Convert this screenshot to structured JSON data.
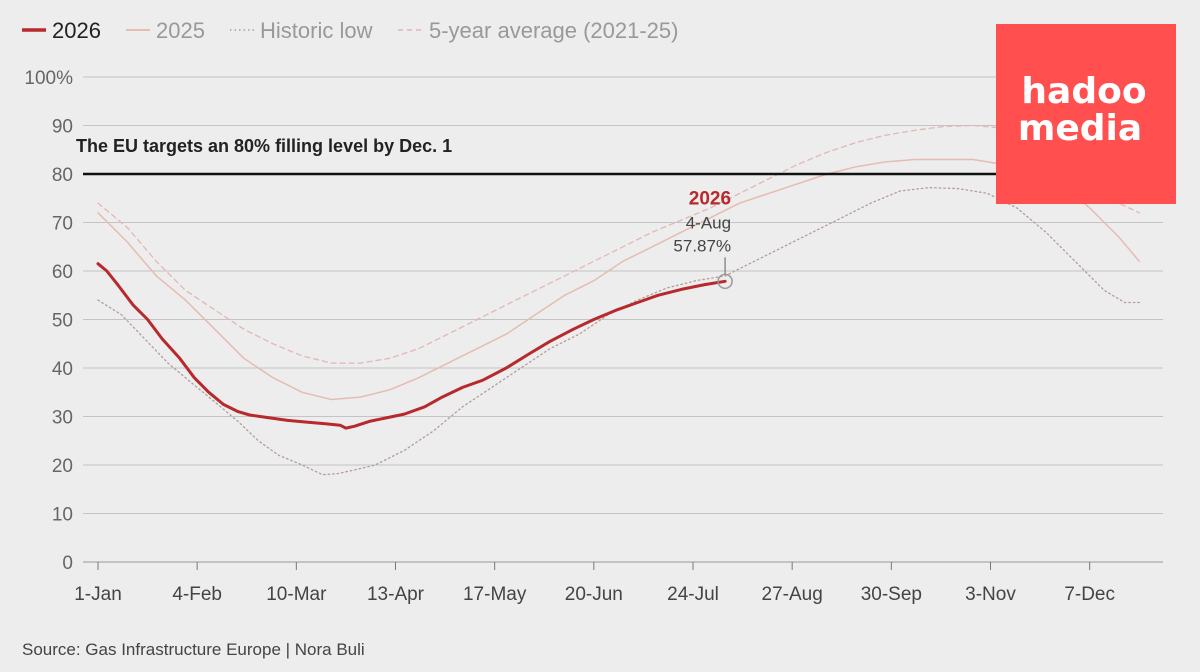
{
  "chart_data": {
    "type": "line",
    "legend_placement": "top-left",
    "x_ticks": [
      "1-Jan",
      "4-Feb",
      "10-Mar",
      "13-Apr",
      "17-May",
      "20-Jun",
      "24-Jul",
      "27-Aug",
      "30-Sep",
      "3-Nov",
      "7-Dec"
    ],
    "y_ticks": [
      "0",
      "10",
      "20",
      "30",
      "40",
      "50",
      "60",
      "70",
      "80",
      "90",
      "100%"
    ],
    "ylim": [
      0,
      100
    ],
    "x_domain_days": [
      0,
      360
    ],
    "grid": true,
    "target": {
      "value": 80,
      "label": "The EU targets an 80% filling level by Dec. 1"
    },
    "annotation": {
      "title": "2026",
      "date": "4-Aug",
      "value_label": "57.87%",
      "day": 215,
      "value": 57.87
    },
    "series": [
      {
        "name": "2026",
        "color": "#b7292c",
        "style": "solid-thick",
        "points": [
          [
            0,
            61.5
          ],
          [
            3,
            60
          ],
          [
            7,
            57
          ],
          [
            12,
            53
          ],
          [
            17,
            50
          ],
          [
            22,
            46
          ],
          [
            28,
            42
          ],
          [
            33,
            38
          ],
          [
            38,
            35
          ],
          [
            43,
            32.5
          ],
          [
            48,
            31
          ],
          [
            52,
            30.3
          ],
          [
            58,
            29.8
          ],
          [
            65,
            29.2
          ],
          [
            72,
            28.8
          ],
          [
            78,
            28.5
          ],
          [
            83,
            28.2
          ],
          [
            85,
            27.6
          ],
          [
            88,
            28
          ],
          [
            93,
            29
          ],
          [
            98,
            29.6
          ],
          [
            105,
            30.5
          ],
          [
            112,
            32
          ],
          [
            118,
            34
          ],
          [
            125,
            36
          ],
          [
            132,
            37.5
          ],
          [
            140,
            40
          ],
          [
            148,
            43
          ],
          [
            155,
            45.5
          ],
          [
            163,
            48
          ],
          [
            170,
            50
          ],
          [
            178,
            52
          ],
          [
            185,
            53.5
          ],
          [
            192,
            55
          ],
          [
            200,
            56.2
          ],
          [
            208,
            57.2
          ],
          [
            215,
            57.87
          ]
        ]
      },
      {
        "name": "2025",
        "color": "#e6bcb0",
        "style": "solid-thin",
        "points": [
          [
            0,
            72
          ],
          [
            10,
            66
          ],
          [
            20,
            59
          ],
          [
            30,
            54
          ],
          [
            40,
            48
          ],
          [
            50,
            42
          ],
          [
            60,
            38
          ],
          [
            70,
            35
          ],
          [
            80,
            33.5
          ],
          [
            90,
            34
          ],
          [
            100,
            35.5
          ],
          [
            110,
            38
          ],
          [
            120,
            41
          ],
          [
            130,
            44
          ],
          [
            140,
            47
          ],
          [
            150,
            51
          ],
          [
            160,
            55
          ],
          [
            170,
            58
          ],
          [
            180,
            62
          ],
          [
            190,
            65
          ],
          [
            200,
            68
          ],
          [
            210,
            71
          ],
          [
            220,
            74
          ],
          [
            230,
            76
          ],
          [
            240,
            78
          ],
          [
            250,
            80
          ],
          [
            260,
            81.5
          ],
          [
            270,
            82.5
          ],
          [
            280,
            83
          ],
          [
            290,
            83
          ],
          [
            300,
            83
          ],
          [
            310,
            82
          ],
          [
            320,
            80
          ],
          [
            330,
            78
          ],
          [
            340,
            73
          ],
          [
            350,
            67
          ],
          [
            357,
            62
          ]
        ]
      },
      {
        "name": "Historic low",
        "color": "#b59a9a",
        "style": "dotted",
        "points": [
          [
            0,
            54
          ],
          [
            8,
            51
          ],
          [
            16,
            46
          ],
          [
            24,
            41
          ],
          [
            32,
            37
          ],
          [
            40,
            33
          ],
          [
            48,
            29
          ],
          [
            55,
            25
          ],
          [
            62,
            22
          ],
          [
            70,
            20
          ],
          [
            77,
            18
          ],
          [
            82,
            18.2
          ],
          [
            88,
            19
          ],
          [
            95,
            20
          ],
          [
            105,
            23
          ],
          [
            115,
            27
          ],
          [
            125,
            32
          ],
          [
            135,
            36
          ],
          [
            145,
            40
          ],
          [
            155,
            44
          ],
          [
            165,
            47
          ],
          [
            175,
            51
          ],
          [
            185,
            54
          ],
          [
            195,
            56.5
          ],
          [
            205,
            58
          ],
          [
            215,
            59
          ],
          [
            225,
            62
          ],
          [
            235,
            65
          ],
          [
            245,
            68
          ],
          [
            255,
            71
          ],
          [
            265,
            74
          ],
          [
            275,
            76.5
          ],
          [
            285,
            77.2
          ],
          [
            295,
            77
          ],
          [
            305,
            76
          ],
          [
            315,
            73
          ],
          [
            325,
            68
          ],
          [
            335,
            62
          ],
          [
            345,
            56
          ],
          [
            352,
            53.5
          ],
          [
            357,
            53.5
          ]
        ]
      },
      {
        "name": "5-year average (2021-25)",
        "color": "#e1b7b4",
        "style": "dashed",
        "points": [
          [
            0,
            74
          ],
          [
            10,
            69
          ],
          [
            20,
            62
          ],
          [
            30,
            56
          ],
          [
            40,
            52
          ],
          [
            50,
            48
          ],
          [
            60,
            45
          ],
          [
            70,
            42.5
          ],
          [
            80,
            41
          ],
          [
            90,
            41
          ],
          [
            100,
            42
          ],
          [
            110,
            44
          ],
          [
            120,
            47
          ],
          [
            130,
            50
          ],
          [
            140,
            53
          ],
          [
            150,
            56
          ],
          [
            160,
            59
          ],
          [
            170,
            62
          ],
          [
            180,
            65
          ],
          [
            190,
            68
          ],
          [
            200,
            70.5
          ],
          [
            210,
            73
          ],
          [
            220,
            76
          ],
          [
            230,
            79
          ],
          [
            240,
            82
          ],
          [
            250,
            84.5
          ],
          [
            260,
            86.5
          ],
          [
            270,
            88
          ],
          [
            280,
            89
          ],
          [
            290,
            89.8
          ],
          [
            300,
            90
          ],
          [
            310,
            89.5
          ],
          [
            320,
            88
          ],
          [
            330,
            84
          ],
          [
            340,
            79
          ],
          [
            350,
            74
          ],
          [
            357,
            72
          ]
        ]
      }
    ]
  },
  "source": "Source: Gas Infrastructure Europe | Nora Buli",
  "logo": {
    "line1": "hadoo",
    "line2": "media",
    "color": "#ff4f4f"
  }
}
